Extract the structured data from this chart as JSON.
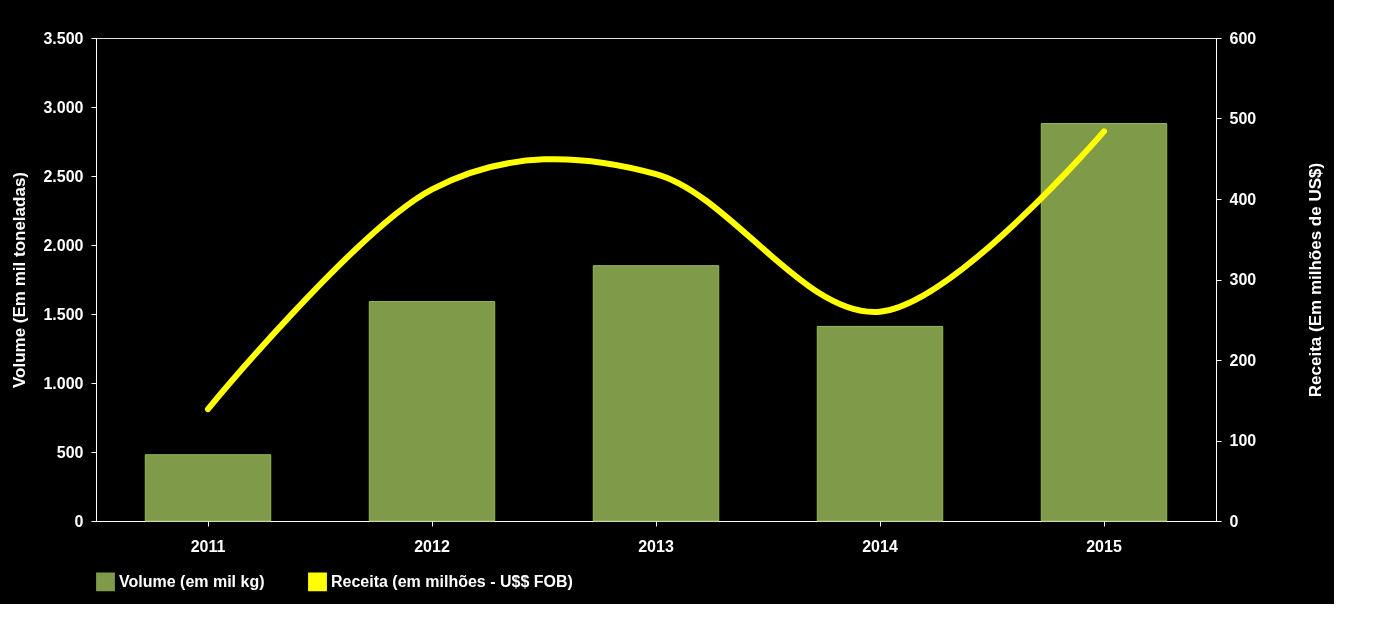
{
  "chart_data": {
    "type": "bar",
    "categories": [
      "2011",
      "2012",
      "2013",
      "2014",
      "2015"
    ],
    "ylabel": "Volume (Em mil toneladas)",
    "y2label": "Receita (Em milhões de US$)",
    "series": [
      {
        "name": "Volume (em mil kg)",
        "color": "#7f9a48",
        "values": [
          480,
          1590,
          1850,
          1410,
          2880
        ]
      },
      {
        "name": "Receita (em milhões - U$$ FOB)",
        "color": "#ffff00",
        "type": "line",
        "axis": "y2",
        "values": [
          139,
          412,
          431,
          260,
          484
        ]
      }
    ],
    "ylim": [
      0,
      3500
    ],
    "yticks": [
      0,
      500,
      {
        "value": 1000,
        "label": "1.000"
      },
      {
        "value": 1500,
        "label": "1.500"
      },
      {
        "value": 2000,
        "label": "2.000"
      },
      {
        "value": 2500,
        "label": "2.500"
      },
      {
        "value": 3000,
        "label": "3.000"
      },
      {
        "value": 3500,
        "label": "3.500"
      }
    ],
    "y2lim": [
      0,
      600
    ],
    "y2ticks": [
      0,
      100,
      200,
      300,
      400,
      500,
      600
    ],
    "grid": false,
    "legend": "bottom",
    "marker": "none",
    "line_style": "solid"
  }
}
